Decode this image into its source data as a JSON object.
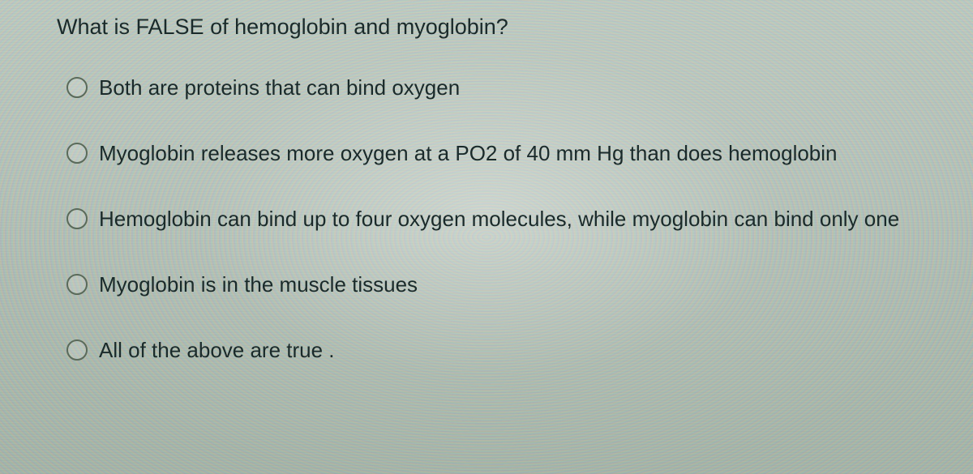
{
  "question": {
    "prompt": "What is FALSE of hemoglobin and myoglobin?",
    "options": [
      {
        "label": "Both are proteins that can bind oxygen"
      },
      {
        "label": "Myoglobin releases more oxygen at a PO2 of 40 mm Hg than does hemoglobin"
      },
      {
        "label": "Hemoglobin can bind up to four oxygen molecules, while myoglobin can bind only one"
      },
      {
        "label": "Myoglobin is in the muscle tissues"
      },
      {
        "label": "All of the above are true ."
      }
    ]
  },
  "style": {
    "text_color": "#1a2a2a",
    "radio_border": "#5a6a5a",
    "question_fontsize": 27,
    "option_fontsize": 26
  }
}
